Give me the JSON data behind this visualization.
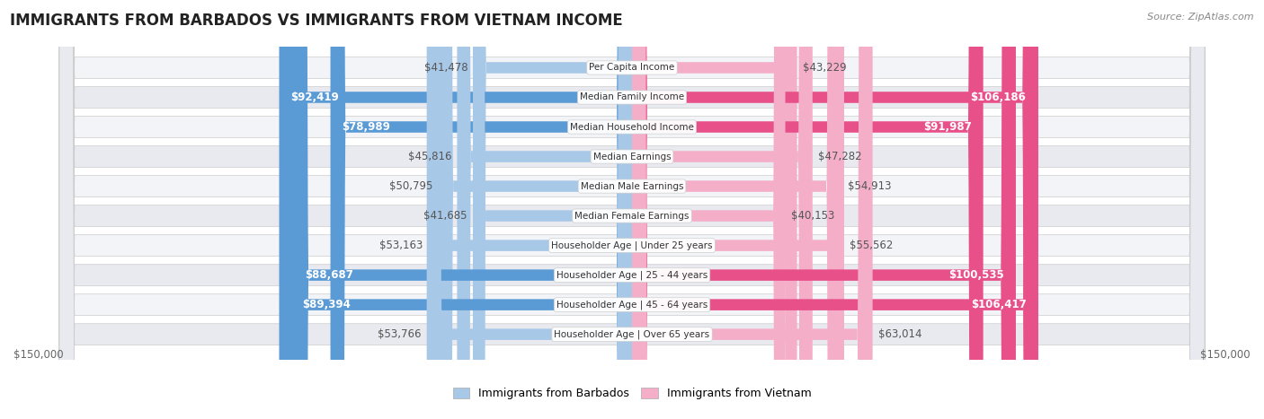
{
  "title": "IMMIGRANTS FROM BARBADOS VS IMMIGRANTS FROM VIETNAM INCOME",
  "source": "Source: ZipAtlas.com",
  "categories": [
    "Per Capita Income",
    "Median Family Income",
    "Median Household Income",
    "Median Earnings",
    "Median Male Earnings",
    "Median Female Earnings",
    "Householder Age | Under 25 years",
    "Householder Age | 25 - 44 years",
    "Householder Age | 45 - 64 years",
    "Householder Age | Over 65 years"
  ],
  "barbados_values": [
    41478,
    92419,
    78989,
    45816,
    50795,
    41685,
    53163,
    88687,
    89394,
    53766
  ],
  "vietnam_values": [
    43229,
    106186,
    91987,
    47282,
    54913,
    40153,
    55562,
    100535,
    106417,
    63014
  ],
  "barbados_labels": [
    "$41,478",
    "$92,419",
    "$78,989",
    "$45,816",
    "$50,795",
    "$41,685",
    "$53,163",
    "$88,687",
    "$89,394",
    "$53,766"
  ],
  "vietnam_labels": [
    "$43,229",
    "$106,186",
    "$91,987",
    "$47,282",
    "$54,913",
    "$40,153",
    "$55,562",
    "$100,535",
    "$106,417",
    "$63,014"
  ],
  "max_value": 150000,
  "barbados_color_light": "#a8c8e8",
  "barbados_color_dark": "#5b9bd5",
  "vietnam_color_light": "#f4aec8",
  "vietnam_color_dark": "#e8508a",
  "row_bg_even": "#f2f4f8",
  "row_bg_odd": "#e8eaf0",
  "axis_label": "$150,000",
  "legend_barbados": "Immigrants from Barbados",
  "legend_vietnam": "Immigrants from Vietnam",
  "title_fontsize": 12,
  "label_fontsize": 8.5,
  "category_fontsize": 7.5,
  "white_text_threshold": 65000
}
